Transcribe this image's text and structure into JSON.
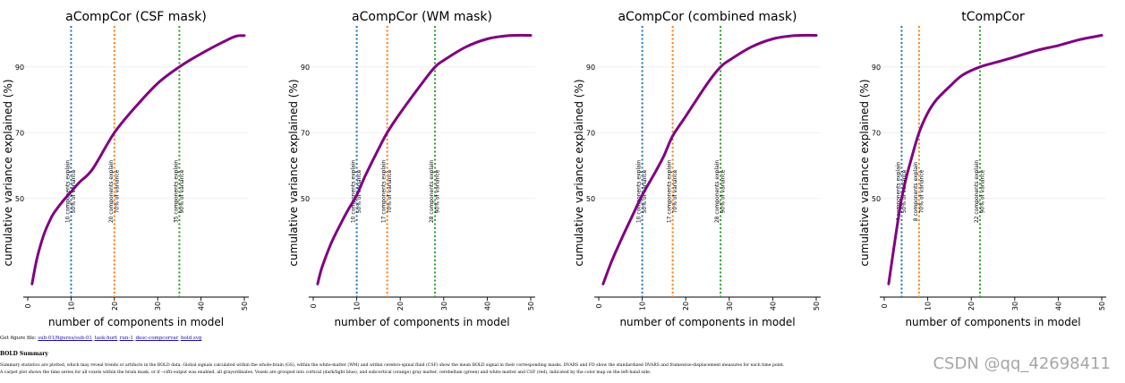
{
  "chart_data": [
    {
      "type": "line",
      "title": "aCompCor (CSF mask)",
      "xlabel": "number of components in model",
      "ylabel": "cumulative variance explained (%)",
      "xlim": [
        0,
        50
      ],
      "ylim": [
        20,
        100
      ],
      "xticks": [
        "0",
        "10",
        "20",
        "30",
        "40",
        "50"
      ],
      "yticks": [
        "50",
        "70",
        "90"
      ],
      "series": [
        {
          "name": "cumulative variance",
          "color": "#800080",
          "x": [
            1,
            2,
            3,
            4,
            5,
            6,
            8,
            10,
            12,
            15,
            20,
            25,
            30,
            35,
            40,
            45,
            48,
            50
          ],
          "y": [
            24,
            31,
            36,
            40,
            43,
            45.5,
            49,
            52,
            55,
            59,
            70,
            78,
            85,
            90,
            94,
            97.5,
            99.3,
            99.5
          ]
        }
      ],
      "thresholds": [
        {
          "x": 10,
          "color": "#1f77b4",
          "label": "10 components explain\n50% of variance"
        },
        {
          "x": 20,
          "color": "#ff7f0e",
          "label": "20 components explain\n70% of variance"
        },
        {
          "x": 35,
          "color": "#2ca02c",
          "label": "35 components explain\n90% of variance"
        }
      ]
    },
    {
      "type": "line",
      "title": "aCompCor (WM mask)",
      "xlabel": "number of components in model",
      "ylabel": "cumulative variance explained (%)",
      "xlim": [
        0,
        50
      ],
      "ylim": [
        20,
        100
      ],
      "xticks": [
        "0",
        "10",
        "20",
        "30",
        "40",
        "50"
      ],
      "yticks": [
        "50",
        "70",
        "90"
      ],
      "series": [
        {
          "name": "cumulative variance",
          "color": "#800080",
          "x": [
            1,
            2,
            4,
            6,
            8,
            10,
            12,
            15,
            17,
            20,
            25,
            28,
            30,
            35,
            40,
            45,
            50
          ],
          "y": [
            24,
            29,
            36,
            41.5,
            46.5,
            51,
            57,
            65,
            70,
            76,
            85,
            90,
            92,
            96,
            98.5,
            99.5,
            99.6
          ]
        }
      ],
      "thresholds": [
        {
          "x": 10,
          "color": "#1f77b4",
          "label": "10 components explain\n50% of variance"
        },
        {
          "x": 17,
          "color": "#ff7f0e",
          "label": "17 components explain\n70% of variance"
        },
        {
          "x": 28,
          "color": "#2ca02c",
          "label": "28 components explain\n90% of variance"
        }
      ]
    },
    {
      "type": "line",
      "title": "aCompCor (combined mask)",
      "xlabel": "number of components in model",
      "ylabel": "cumulative variance explained (%)",
      "xlim": [
        0,
        50
      ],
      "ylim": [
        20,
        100
      ],
      "xticks": [
        "0",
        "10",
        "20",
        "30",
        "40",
        "50"
      ],
      "yticks": [
        "50",
        "70",
        "90"
      ],
      "series": [
        {
          "name": "cumulative variance",
          "color": "#800080",
          "x": [
            1,
            3,
            5,
            8,
            10,
            13,
            15,
            17,
            20,
            25,
            28,
            30,
            35,
            40,
            45,
            50
          ],
          "y": [
            24,
            31,
            37,
            45.5,
            51,
            58,
            63,
            69,
            75,
            85,
            90,
            92,
            96,
            98.5,
            99.5,
            99.6
          ]
        }
      ],
      "thresholds": [
        {
          "x": 10,
          "color": "#1f77b4",
          "label": "10 components explain\n50% of variance"
        },
        {
          "x": 17,
          "color": "#ff7f0e",
          "label": "17 components explain\n70% of variance"
        },
        {
          "x": 28,
          "color": "#2ca02c",
          "label": "28 components explain\n90% of variance"
        }
      ]
    },
    {
      "type": "line",
      "title": "tCompCor",
      "xlabel": "number of components in model",
      "ylabel": "cumulative variance explained (%)",
      "xlim": [
        0,
        50
      ],
      "ylim": [
        20,
        100
      ],
      "xticks": [
        "0",
        "10",
        "20",
        "30",
        "40",
        "50"
      ],
      "yticks": [
        "50",
        "70",
        "90"
      ],
      "series": [
        {
          "name": "cumulative variance",
          "color": "#800080",
          "x": [
            1,
            2,
            3,
            4,
            5,
            6,
            8,
            10,
            12,
            15,
            18,
            22,
            26,
            30,
            35,
            40,
            45,
            50
          ],
          "y": [
            24,
            33,
            42,
            50,
            56,
            61,
            70,
            76,
            80,
            84,
            87.5,
            90,
            91.5,
            93,
            95,
            96.5,
            98.3,
            99.6
          ]
        }
      ],
      "thresholds": [
        {
          "x": 4,
          "color": "#1f77b4",
          "label": "4 components explain\n50% of variance"
        },
        {
          "x": 8,
          "color": "#ff7f0e",
          "label": "8 components explain\n70% of variance"
        },
        {
          "x": 22,
          "color": "#2ca02c",
          "label": "22 components explain\n90% of variance"
        }
      ]
    }
  ],
  "footer": {
    "figure_prefix": "Get figure file: ",
    "figure_links": [
      "sub-01/figures/sub-01",
      "task-hurt",
      "run-1",
      "desc-compcorvar",
      "bold.svg"
    ],
    "figure_seps": [
      "_",
      "_",
      "_",
      "_"
    ],
    "heading": "BOLD Summary",
    "paragraph_1": "Summary statistics are plotted, which may reveal trends or artifacts in the BOLD data. Global signals calculated within the whole-brain (GS), within the white-matter (WM) and within cerebro-spinal fluid (CSF) show the mean BOLD signal in their corresponding masks. DVARS and FD show the standardized DVARS and framewise-displacement measures for each time point.",
    "paragraph_2": "A carpet plot shows the time series for all voxels within the brain mask, or if --cifti-output was enabled, all grayordinates. Voxels are grouped into cortical (dark/light blue), and subcortical (orange) gray matter, cerebellum (green) and white matter and CSF (red), indicated by the color map on the left-hand side."
  },
  "watermark": "CSDN @qq_42698411"
}
